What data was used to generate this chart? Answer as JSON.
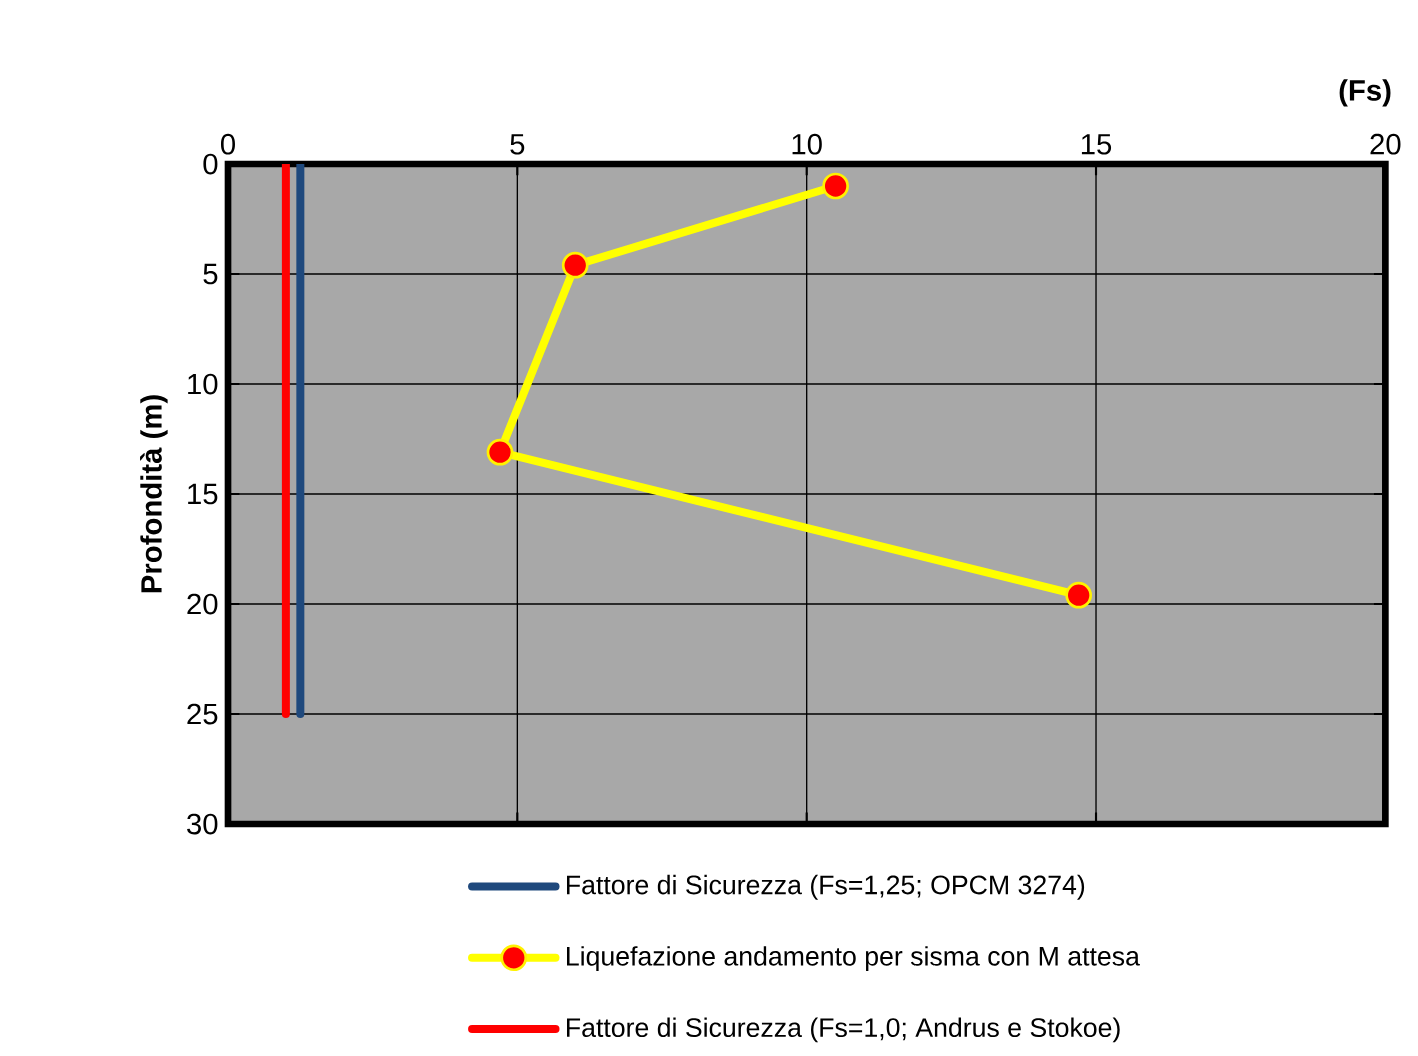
{
  "chart_data": {
    "type": "line",
    "xlabel": "(Fs)",
    "ylabel": "Profondità (m)",
    "xlim": [
      0,
      20
    ],
    "xticks": [
      0,
      5,
      10,
      15,
      20
    ],
    "ylim": [
      30,
      0
    ],
    "yticks": [
      0,
      5,
      10,
      15,
      20,
      25,
      30
    ],
    "grid": true,
    "legend": "bottom",
    "series": [
      {
        "name": "Fattore di Sicurezza (Fs=1,25; OPCM 3274)",
        "color": "#1f497d",
        "x": [
          1.25,
          1.25
        ],
        "values": [
          0,
          25
        ],
        "marker": "none"
      },
      {
        "name": "Liquefazione andamento per sisma con M attesa",
        "color": "#ffff00",
        "x": [
          10.5,
          6.0,
          4.7,
          14.7
        ],
        "values": [
          1,
          4.6,
          13.1,
          19.6
        ],
        "marker": "circle"
      },
      {
        "name": "Fattore di Sicurezza (Fs=1,0; Andrus e Stokoe)",
        "color": "#ff0000",
        "x": [
          1.0,
          1.0
        ],
        "values": [
          0,
          25
        ],
        "marker": "none"
      }
    ]
  }
}
